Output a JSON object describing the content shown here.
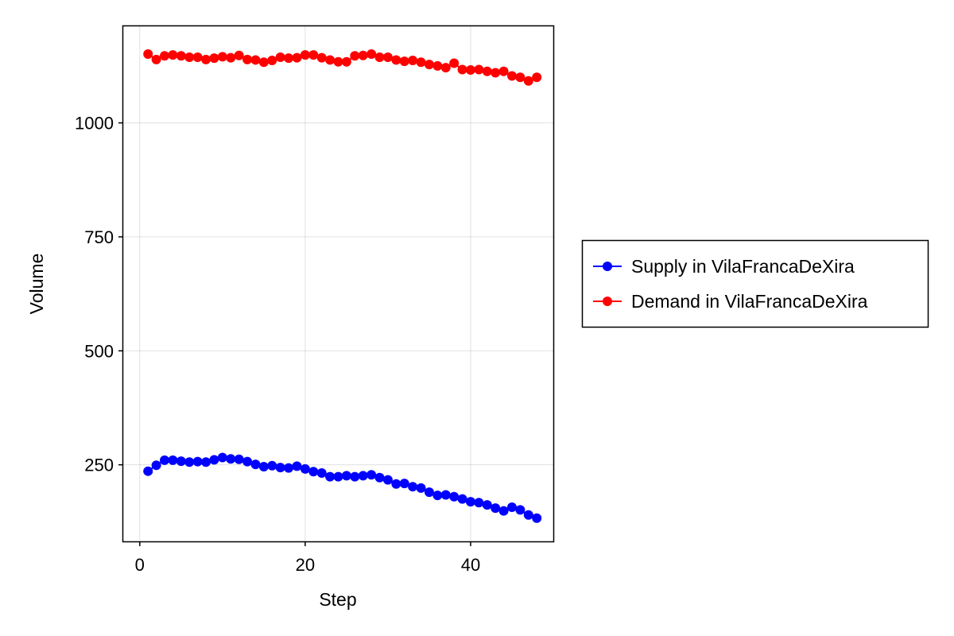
{
  "chart_data": {
    "type": "scatter",
    "mode": "line+markers",
    "title": "",
    "xlabel": "Step",
    "ylabel": "Volume",
    "xlim": [
      -2,
      50
    ],
    "ylim": [
      82,
      1212
    ],
    "xticks": [
      0,
      20,
      40
    ],
    "yticks": [
      250,
      500,
      750,
      1000
    ],
    "xtick_labels": [
      "0",
      "20",
      "40"
    ],
    "ytick_labels": [
      "250",
      "500",
      "750",
      "1000"
    ],
    "grid": true,
    "legend_position": "right",
    "x": [
      1,
      2,
      3,
      4,
      5,
      6,
      7,
      8,
      9,
      10,
      11,
      12,
      13,
      14,
      15,
      16,
      17,
      18,
      19,
      20,
      21,
      22,
      23,
      24,
      25,
      26,
      27,
      28,
      29,
      30,
      31,
      32,
      33,
      34,
      35,
      36,
      37,
      38,
      39,
      40,
      41,
      42,
      43,
      44,
      45,
      46,
      47,
      48
    ],
    "series": [
      {
        "name": "Supply in VilaFrancaDeXira",
        "color": "#0000ff",
        "values": [
          236,
          249,
          260,
          260,
          258,
          256,
          257,
          256,
          261,
          266,
          263,
          262,
          257,
          251,
          246,
          248,
          244,
          243,
          247,
          241,
          235,
          232,
          224,
          224,
          226,
          224,
          226,
          228,
          222,
          217,
          208,
          209,
          202,
          199,
          190,
          183,
          184,
          180,
          175,
          169,
          167,
          162,
          155,
          149,
          157,
          151,
          140,
          133
        ]
      },
      {
        "name": "Demand in VilaFrancaDeXira",
        "color": "#ff0000",
        "values": [
          1151,
          1139,
          1147,
          1149,
          1147,
          1144,
          1144,
          1139,
          1142,
          1145,
          1143,
          1148,
          1139,
          1138,
          1133,
          1137,
          1144,
          1142,
          1143,
          1149,
          1149,
          1143,
          1138,
          1134,
          1134,
          1147,
          1148,
          1151,
          1144,
          1144,
          1138,
          1135,
          1137,
          1133,
          1128,
          1125,
          1121,
          1131,
          1117,
          1116,
          1117,
          1113,
          1110,
          1113,
          1103,
          1100,
          1092,
          1100
        ]
      }
    ]
  }
}
